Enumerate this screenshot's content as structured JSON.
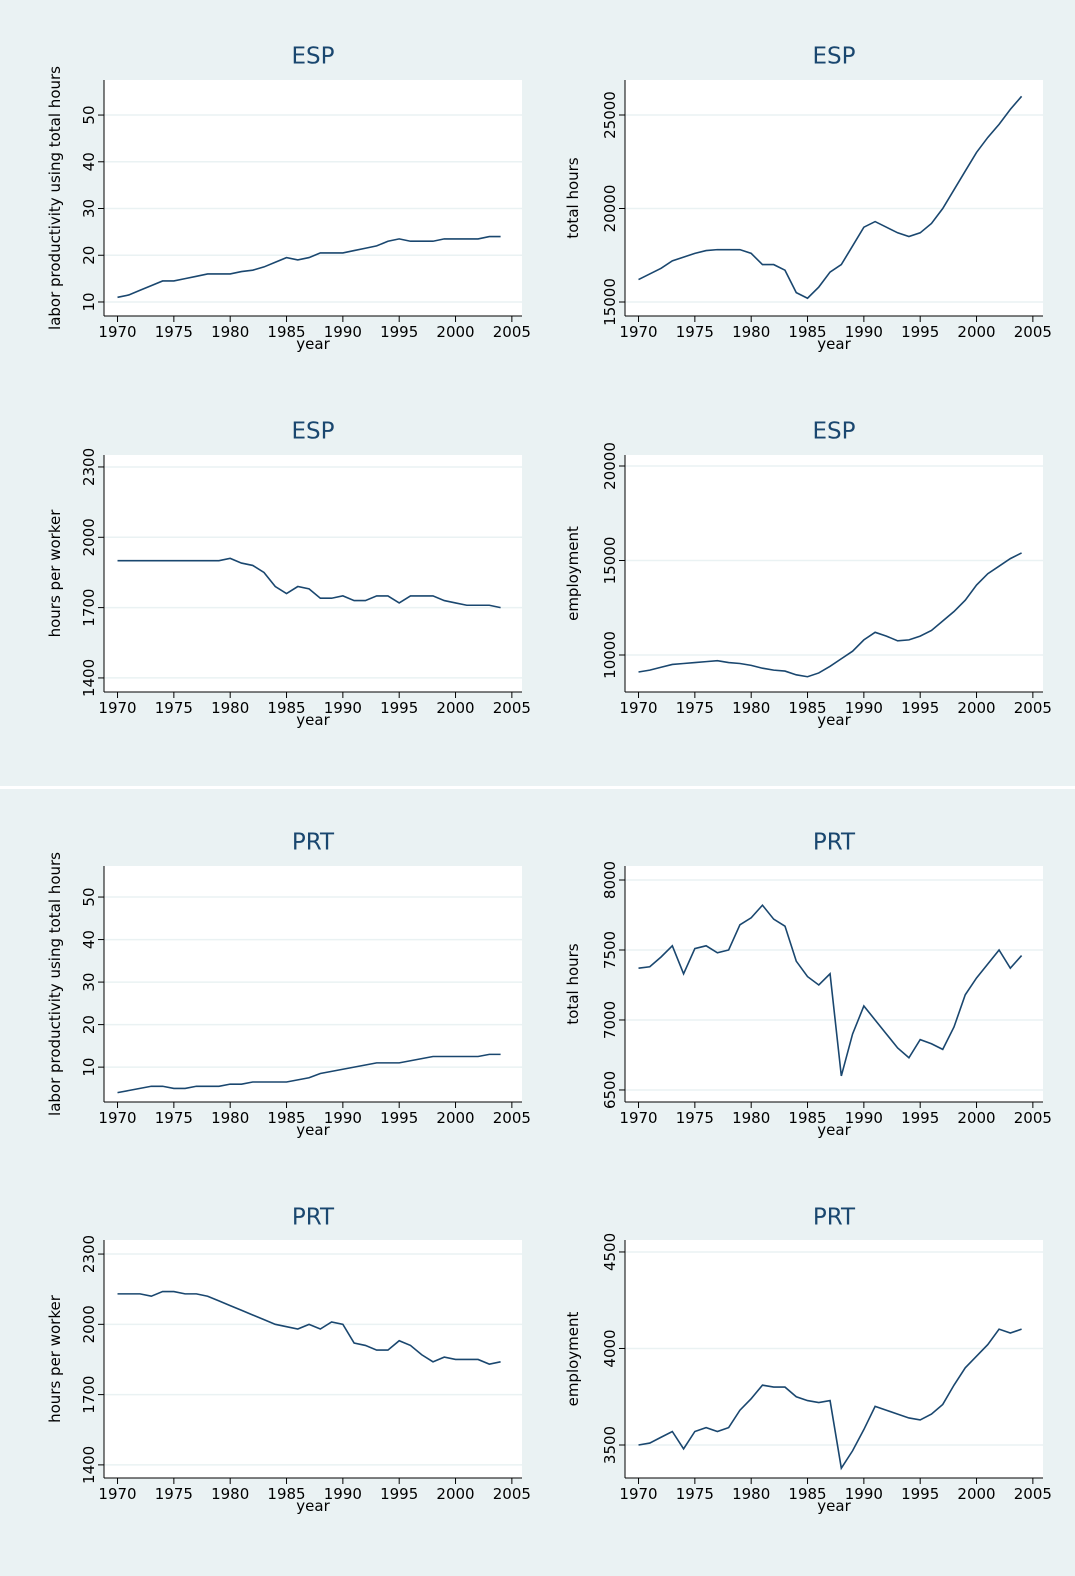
{
  "chart_data": [
    {
      "type": "line",
      "title": "ESP",
      "xlabel": "year",
      "ylabel": "labor productivity using total hours",
      "color": "#1a476f",
      "grid": true,
      "x": [
        1970,
        1971,
        1972,
        1973,
        1974,
        1975,
        1976,
        1977,
        1978,
        1979,
        1980,
        1981,
        1982,
        1983,
        1984,
        1985,
        1986,
        1987,
        1988,
        1989,
        1990,
        1991,
        1992,
        1993,
        1994,
        1995,
        1996,
        1997,
        1998,
        1999,
        2000,
        2001,
        2002,
        2003,
        2004
      ],
      "values": [
        11,
        11.5,
        12.5,
        13.5,
        14.5,
        14.5,
        15,
        15.5,
        16,
        16,
        16,
        16.5,
        16.8,
        17.5,
        18.5,
        19.5,
        19,
        19.5,
        20.5,
        20.5,
        20.5,
        21,
        21.5,
        22,
        23,
        23.5,
        23,
        23,
        23,
        23.5,
        23.5,
        23.5,
        23.5,
        24,
        24
      ],
      "xlim": [
        1968.8,
        2005.9
      ],
      "xticks": [
        1970,
        1975,
        1980,
        1985,
        1990,
        1995,
        2000,
        2005
      ],
      "ylim": [
        7,
        57.5
      ],
      "yticks": [
        10,
        20,
        30,
        40,
        50
      ]
    },
    {
      "type": "line",
      "title": "ESP",
      "xlabel": "year",
      "ylabel": "total hours",
      "color": "#1a476f",
      "grid": true,
      "x": [
        1970,
        1971,
        1972,
        1973,
        1974,
        1975,
        1976,
        1977,
        1978,
        1979,
        1980,
        1981,
        1982,
        1983,
        1984,
        1985,
        1986,
        1987,
        1988,
        1989,
        1990,
        1991,
        1992,
        1993,
        1994,
        1995,
        1996,
        1997,
        1998,
        1999,
        2000,
        2001,
        2002,
        2003,
        2004
      ],
      "values": [
        16200,
        16500,
        16800,
        17200,
        17400,
        17600,
        17750,
        17800,
        17800,
        17800,
        17600,
        17000,
        17000,
        16700,
        15500,
        15200,
        15800,
        16600,
        17000,
        18000,
        19000,
        19300,
        19000,
        18700,
        18500,
        18700,
        19200,
        20000,
        21000,
        22000,
        23000,
        23800,
        24500,
        25300,
        26000
      ],
      "xlim": [
        1968.8,
        2005.9
      ],
      "xticks": [
        1970,
        1975,
        1980,
        1985,
        1990,
        1995,
        2000,
        2005
      ],
      "ylim": [
        14251,
        26872
      ],
      "yticks": [
        15000,
        20000,
        25000
      ]
    },
    {
      "type": "line",
      "title": "ESP",
      "xlabel": "year",
      "ylabel": "hours per worker",
      "color": "#1a476f",
      "grid": true,
      "x": [
        1970,
        1971,
        1972,
        1973,
        1974,
        1975,
        1976,
        1977,
        1978,
        1979,
        1980,
        1981,
        1982,
        1983,
        1984,
        1985,
        1986,
        1987,
        1988,
        1989,
        1990,
        1991,
        1992,
        1993,
        1994,
        1995,
        1996,
        1997,
        1998,
        1999,
        2000,
        2001,
        2002,
        2003,
        2004
      ],
      "values": [
        1900,
        1900,
        1900,
        1900,
        1900,
        1900,
        1900,
        1900,
        1900,
        1900,
        1910,
        1890,
        1880,
        1850,
        1790,
        1760,
        1790,
        1780,
        1740,
        1740,
        1750,
        1730,
        1730,
        1750,
        1750,
        1720,
        1750,
        1750,
        1750,
        1730,
        1720,
        1710,
        1710,
        1710,
        1700
      ],
      "xlim": [
        1968.8,
        2005.9
      ],
      "xticks": [
        1970,
        1975,
        1980,
        1985,
        1990,
        1995,
        2000,
        2005
      ],
      "ylim": [
        1340,
        2351
      ],
      "yticks": [
        1400,
        1700,
        2000,
        2300
      ]
    },
    {
      "type": "line",
      "title": "ESP",
      "xlabel": "year",
      "ylabel": "employment",
      "color": "#1a476f",
      "grid": true,
      "x": [
        1970,
        1971,
        1972,
        1973,
        1974,
        1975,
        1976,
        1977,
        1978,
        1979,
        1980,
        1981,
        1982,
        1983,
        1984,
        1985,
        1986,
        1987,
        1988,
        1989,
        1990,
        1991,
        1992,
        1993,
        1994,
        1995,
        1996,
        1997,
        1998,
        1999,
        2000,
        2001,
        2002,
        2003,
        2004
      ],
      "values": [
        9100,
        9200,
        9350,
        9500,
        9550,
        9600,
        9650,
        9700,
        9600,
        9550,
        9450,
        9300,
        9200,
        9150,
        8950,
        8850,
        9050,
        9400,
        9800,
        10200,
        10800,
        11200,
        11000,
        10750,
        10800,
        11000,
        11300,
        11800,
        12300,
        12900,
        13700,
        14300,
        14700,
        15100,
        15400
      ],
      "xlim": [
        1968.8,
        2005.9
      ],
      "xticks": [
        1970,
        1975,
        1980,
        1985,
        1990,
        1995,
        2000,
        2005
      ],
      "ylim": [
        8042,
        20582
      ],
      "yticks": [
        10000,
        15000,
        20000
      ]
    },
    {
      "type": "line",
      "title": "PRT",
      "xlabel": "year",
      "ylabel": "labor productivity using total hours",
      "color": "#1a476f",
      "grid": true,
      "x": [
        1970,
        1971,
        1972,
        1973,
        1974,
        1975,
        1976,
        1977,
        1978,
        1979,
        1980,
        1981,
        1982,
        1983,
        1984,
        1985,
        1986,
        1987,
        1988,
        1989,
        1990,
        1991,
        1992,
        1993,
        1994,
        1995,
        1996,
        1997,
        1998,
        1999,
        2000,
        2001,
        2002,
        2003,
        2004
      ],
      "values": [
        4,
        4.5,
        5,
        5.5,
        5.5,
        5,
        5,
        5.5,
        5.5,
        5.5,
        6,
        6,
        6.5,
        6.5,
        6.5,
        6.5,
        7,
        7.5,
        8.5,
        9,
        9.5,
        10,
        10.5,
        11,
        11,
        11,
        11.5,
        12,
        12.5,
        12.5,
        12.5,
        12.5,
        12.5,
        13,
        13
      ],
      "xlim": [
        1968.8,
        2005.9
      ],
      "xticks": [
        1970,
        1975,
        1980,
        1985,
        1990,
        1995,
        2000,
        2005
      ],
      "ylim": [
        1.8,
        57.3
      ],
      "yticks": [
        10,
        20,
        30,
        40,
        50
      ]
    },
    {
      "type": "line",
      "title": "PRT",
      "xlabel": "year",
      "ylabel": "total hours",
      "color": "#1a476f",
      "grid": true,
      "x": [
        1970,
        1971,
        1972,
        1973,
        1974,
        1975,
        1976,
        1977,
        1978,
        1979,
        1980,
        1981,
        1982,
        1983,
        1984,
        1985,
        1986,
        1987,
        1988,
        1989,
        1990,
        1991,
        1992,
        1993,
        1994,
        1995,
        1996,
        1997,
        1998,
        1999,
        2000,
        2001,
        2002,
        2003,
        2004
      ],
      "values": [
        7370,
        7380,
        7450,
        7530,
        7330,
        7510,
        7530,
        7480,
        7500,
        7680,
        7730,
        7820,
        7720,
        7670,
        7420,
        7310,
        7250,
        7330,
        6600,
        6900,
        7100,
        7000,
        6900,
        6800,
        6730,
        6860,
        6830,
        6790,
        6950,
        7180,
        7300,
        7400,
        7500,
        7370,
        7460
      ],
      "xlim": [
        1968.8,
        2005.9
      ],
      "xticks": [
        1970,
        1975,
        1980,
        1985,
        1990,
        1995,
        2000,
        2005
      ],
      "ylim": [
        6414,
        8100
      ],
      "yticks": [
        6500,
        7000,
        7500,
        8000
      ]
    },
    {
      "type": "line",
      "title": "PRT",
      "xlabel": "year",
      "ylabel": "hours per worker",
      "color": "#1a476f",
      "grid": true,
      "x": [
        1970,
        1971,
        1972,
        1973,
        1974,
        1975,
        1976,
        1977,
        1978,
        1979,
        1980,
        1981,
        1982,
        1983,
        1984,
        1985,
        1986,
        1987,
        1988,
        1989,
        1990,
        1991,
        1992,
        1993,
        1994,
        1995,
        1996,
        1997,
        1998,
        1999,
        2000,
        2001,
        2002,
        2003,
        2004
      ],
      "values": [
        2130,
        2130,
        2130,
        2120,
        2140,
        2140,
        2130,
        2130,
        2120,
        2100,
        2080,
        2060,
        2040,
        2020,
        2000,
        1990,
        1980,
        2000,
        1980,
        2010,
        2000,
        1920,
        1910,
        1890,
        1890,
        1930,
        1910,
        1870,
        1840,
        1860,
        1850,
        1850,
        1850,
        1830,
        1840
      ],
      "xlim": [
        1968.8,
        2005.9
      ],
      "xticks": [
        1970,
        1975,
        1980,
        1985,
        1990,
        1995,
        2000,
        2005
      ],
      "ylim": [
        1344,
        2360
      ],
      "yticks": [
        1400,
        1700,
        2000,
        2300
      ]
    },
    {
      "type": "line",
      "title": "PRT",
      "xlabel": "year",
      "ylabel": "employment",
      "color": "#1a476f",
      "grid": true,
      "x": [
        1970,
        1971,
        1972,
        1973,
        1974,
        1975,
        1976,
        1977,
        1978,
        1979,
        1980,
        1981,
        1982,
        1983,
        1984,
        1985,
        1986,
        1987,
        1988,
        1989,
        1990,
        1991,
        1992,
        1993,
        1994,
        1995,
        1996,
        1997,
        1998,
        1999,
        2000,
        2001,
        2002,
        2003,
        2004
      ],
      "values": [
        3500,
        3510,
        3540,
        3570,
        3480,
        3570,
        3590,
        3570,
        3590,
        3680,
        3740,
        3810,
        3800,
        3800,
        3750,
        3730,
        3720,
        3730,
        3380,
        3470,
        3580,
        3700,
        3680,
        3660,
        3640,
        3630,
        3660,
        3710,
        3810,
        3900,
        3960,
        4020,
        4100,
        4080,
        4100
      ],
      "xlim": [
        1968.8,
        2005.9
      ],
      "xticks": [
        1970,
        1975,
        1980,
        1985,
        1990,
        1995,
        2000,
        2005
      ],
      "ylim": [
        3329,
        4562
      ],
      "yticks": [
        3500,
        4000,
        4500
      ]
    }
  ]
}
